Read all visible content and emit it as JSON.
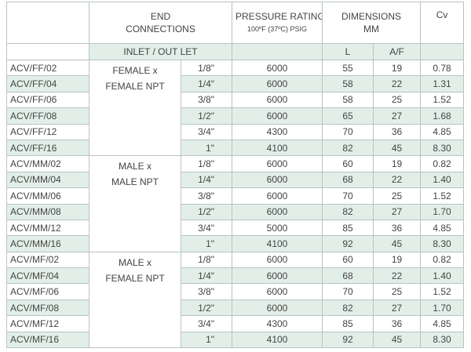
{
  "header": {
    "blank": "",
    "end_connections": [
      "END",
      "CONNECTIONS"
    ],
    "pressure_rating": "PRESSURE RATING",
    "pressure_units": "100ºF (37ºC) PSIG",
    "dimensions": [
      "DIMENSIONS",
      "MM"
    ],
    "cv": "Cv",
    "inlet_outlet": "INLET / OUT LET",
    "l": "L",
    "af": "A/F"
  },
  "groups": [
    {
      "connection": [
        "FEMALE x",
        "FEMALE NPT"
      ],
      "rows": [
        [
          "ACV/FF/02",
          "1/8\"",
          "6000",
          "55",
          "19",
          "0.78"
        ],
        [
          "ACV/FF/04",
          "1/4\"",
          "6000",
          "58",
          "22",
          "1.31"
        ],
        [
          "ACV/FF/06",
          "3/8\"",
          "6000",
          "58",
          "25",
          "1.52"
        ],
        [
          "ACV/FF/08",
          "1/2\"",
          "6000",
          "65",
          "27",
          "1.68"
        ],
        [
          "ACV/FF/12",
          "3/4\"",
          "4300",
          "70",
          "36",
          "4.85"
        ],
        [
          "ACV/FF/16",
          "1\"",
          "4100",
          "82",
          "45",
          "8.30"
        ]
      ]
    },
    {
      "connection": [
        "MALE x",
        "MALE NPT"
      ],
      "rows": [
        [
          "ACV/MM/02",
          "1/8\"",
          "6000",
          "60",
          "19",
          "0.82"
        ],
        [
          "ACV/MM/04",
          "1/4\"",
          "6000",
          "68",
          "22",
          "1.40"
        ],
        [
          "ACV/MM/06",
          "3/8\"",
          "6000",
          "70",
          "25",
          "1.52"
        ],
        [
          "ACV/MM/08",
          "1/2\"",
          "6000",
          "82",
          "27",
          "1.70"
        ],
        [
          "ACV/MM/12",
          "3/4\"",
          "5000",
          "85",
          "36",
          "4.85"
        ],
        [
          "ACV/MM/16",
          "1\"",
          "4100",
          "92",
          "45",
          "8.30"
        ]
      ]
    },
    {
      "connection": [
        "MALE x",
        "FEMALE NPT"
      ],
      "rows": [
        [
          "ACV/MF/02",
          "1/8\"",
          "6000",
          "60",
          "19",
          "0.82"
        ],
        [
          "ACV/MF/04",
          "1/4\"",
          "6000",
          "68",
          "22",
          "1.40"
        ],
        [
          "ACV/MF/06",
          "3/8\"",
          "6000",
          "70",
          "25",
          "1.52"
        ],
        [
          "ACV/MF/08",
          "1/2\"",
          "6000",
          "82",
          "27",
          "1.70"
        ],
        [
          "ACV/MF/12",
          "3/4\"",
          "4300",
          "85",
          "36",
          "4.85"
        ],
        [
          "ACV/MF/16",
          "1\"",
          "4100",
          "92",
          "45",
          "8.30"
        ]
      ]
    }
  ]
}
